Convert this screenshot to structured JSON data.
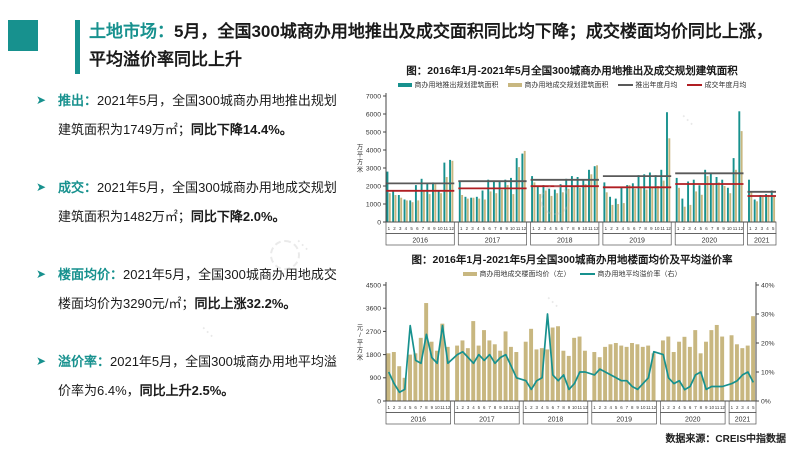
{
  "slide": {
    "title_highlight": "土地市场：",
    "title_rest": "5月，全国300城商办用地推出及成交面积同比均下降；成交楼面均价同比上涨，平均溢价率同比上升",
    "source": "数据来源：CREIS中指数据"
  },
  "colors": {
    "teal": "#17918e",
    "tan": "#c8b780",
    "gray": "#595959",
    "red": "#b01e23"
  },
  "bullets": [
    {
      "label": "推出：",
      "text": "2021年5月，全国300城商办用地推出规划建筑面积为1749万㎡；",
      "bold": "同比下降14.4%。"
    },
    {
      "label": "成交：",
      "text": "2021年5月，全国300城商办用地成交规划建筑面积为1482万㎡；",
      "bold": "同比下降2.0%。"
    },
    {
      "label": "楼面均价：",
      "text": "2021年5月，全国300城商办用地成交楼面均价为3290元/㎡；",
      "bold": "同比上涨32.2%。"
    },
    {
      "label": "溢价率：",
      "text": "2021年5月，全国300城商办用地平均溢价率为6.4%，",
      "bold": "同比上升2.5%。"
    }
  ],
  "chart_data": [
    {
      "type": "bar",
      "title": "图：2016年1月-2021年5月全国300城商办用地推出及成交规划建筑面积",
      "axis_left": {
        "label": "万平方米",
        "range": [
          0,
          7000
        ],
        "step": 1000
      },
      "years": [
        {
          "label": "2016",
          "months": 12
        },
        {
          "label": "2017",
          "months": 12
        },
        {
          "label": "2018",
          "months": 12
        },
        {
          "label": "2019",
          "months": 12
        },
        {
          "label": "2020",
          "months": 12
        },
        {
          "label": "2021",
          "months": 5
        }
      ],
      "series": [
        {
          "name": "商办用地推出规划建筑面积",
          "type": "bar",
          "color": "#17918e",
          "values": [
            2800,
            1750,
            1500,
            1250,
            1200,
            2050,
            2400,
            2150,
            2200,
            1700,
            3300,
            3450,
            2250,
            1400,
            1350,
            1400,
            1750,
            2350,
            2250,
            2300,
            2350,
            2450,
            3550,
            3800,
            2550,
            2000,
            2050,
            1850,
            1800,
            2100,
            2400,
            2550,
            2500,
            2350,
            2900,
            3100,
            2200,
            1400,
            1300,
            1900,
            2050,
            2150,
            2600,
            2650,
            2750,
            2600,
            2900,
            6100,
            2450,
            1300,
            2250,
            2350,
            2043,
            2900,
            2750,
            2500,
            2350,
            1900,
            3550,
            6150,
            2350,
            1250,
            1500,
            1550,
            1749
          ]
        },
        {
          "name": "商办用地成交规划建筑面积",
          "type": "bar",
          "color": "#c8b780",
          "values": [
            1600,
            1500,
            1350,
            1200,
            1100,
            1200,
            1700,
            1550,
            2100,
            1600,
            2500,
            3400,
            1500,
            1300,
            1350,
            1300,
            1250,
            1700,
            1600,
            1800,
            2050,
            1550,
            3050,
            3950,
            2200,
            1550,
            1750,
            1450,
            1600,
            1650,
            1850,
            2000,
            1900,
            2100,
            2650,
            3150,
            1650,
            950,
            1000,
            1050,
            2050,
            1850,
            1900,
            1800,
            1900,
            2000,
            2300,
            4650,
            1900,
            850,
            950,
            1700,
            1512,
            2550,
            2100,
            2200,
            2000,
            1600,
            2900,
            5050,
            1700,
            1150,
            1400,
            1500,
            1482
          ]
        },
        {
          "name": "推出年度月均",
          "type": "yearline",
          "color": "#595959",
          "values": [
            2146,
            2267,
            2346,
            2550,
            2708,
            1680
          ]
        },
        {
          "name": "成交年度月均",
          "type": "yearline",
          "color": "#b01e23",
          "values": [
            1733,
            1867,
            1988,
            1925,
            2109,
            1446
          ]
        }
      ]
    },
    {
      "type": "bar+line",
      "title": "图：2016年1月-2021年5月全国300城商办用地楼面均价及平均溢价率",
      "axis_left": {
        "label": "元/平方米",
        "range": [
          0,
          4500
        ],
        "step": 900
      },
      "axis_right": {
        "range": [
          0,
          40
        ],
        "step": 10,
        "suffix": "%"
      },
      "years": [
        {
          "label": "2016",
          "months": 12
        },
        {
          "label": "2017",
          "months": 12
        },
        {
          "label": "2018",
          "months": 12
        },
        {
          "label": "2019",
          "months": 12
        },
        {
          "label": "2020",
          "months": 12
        },
        {
          "label": "2021",
          "months": 5
        }
      ],
      "series": [
        {
          "name": "商办用地成交楼面均价（左）",
          "type": "bar",
          "axis": "left",
          "color": "#c8b780",
          "values": [
            1850,
            1900,
            1350,
            900,
            1800,
            1850,
            2450,
            3800,
            2300,
            1950,
            3000,
            2100,
            2150,
            2350,
            2050,
            3100,
            2150,
            2750,
            2350,
            2200,
            1950,
            2700,
            2100,
            1900,
            2300,
            2800,
            2000,
            2050,
            2000,
            2850,
            2900,
            1950,
            1750,
            2450,
            2500,
            1950,
            1900,
            1700,
            2100,
            2200,
            2250,
            2150,
            2100,
            2250,
            2200,
            2100,
            2150,
            1850,
            2350,
            2500,
            1900,
            2300,
            2490,
            2100,
            2750,
            1850,
            2300,
            2750,
            2950,
            2500,
            2550,
            2200,
            2050,
            2150,
            3290
          ]
        },
        {
          "name": "商办用地平均溢价率（右）",
          "type": "line",
          "axis": "right",
          "color": "#17918e",
          "values": [
            10,
            6,
            3,
            4,
            26,
            14,
            13,
            23,
            15,
            13,
            26,
            13,
            16,
            17,
            15,
            13,
            16,
            14,
            16,
            13,
            15,
            16,
            12,
            8,
            7,
            4,
            7,
            8,
            30,
            9,
            7,
            9,
            4,
            6,
            10,
            10,
            9,
            11,
            10,
            9,
            8,
            7,
            7,
            5,
            4,
            6,
            8,
            17,
            16,
            8,
            6,
            7,
            3.9,
            5,
            9,
            10,
            4,
            5,
            5,
            5,
            6,
            7,
            9,
            10,
            6.4
          ]
        }
      ]
    }
  ]
}
